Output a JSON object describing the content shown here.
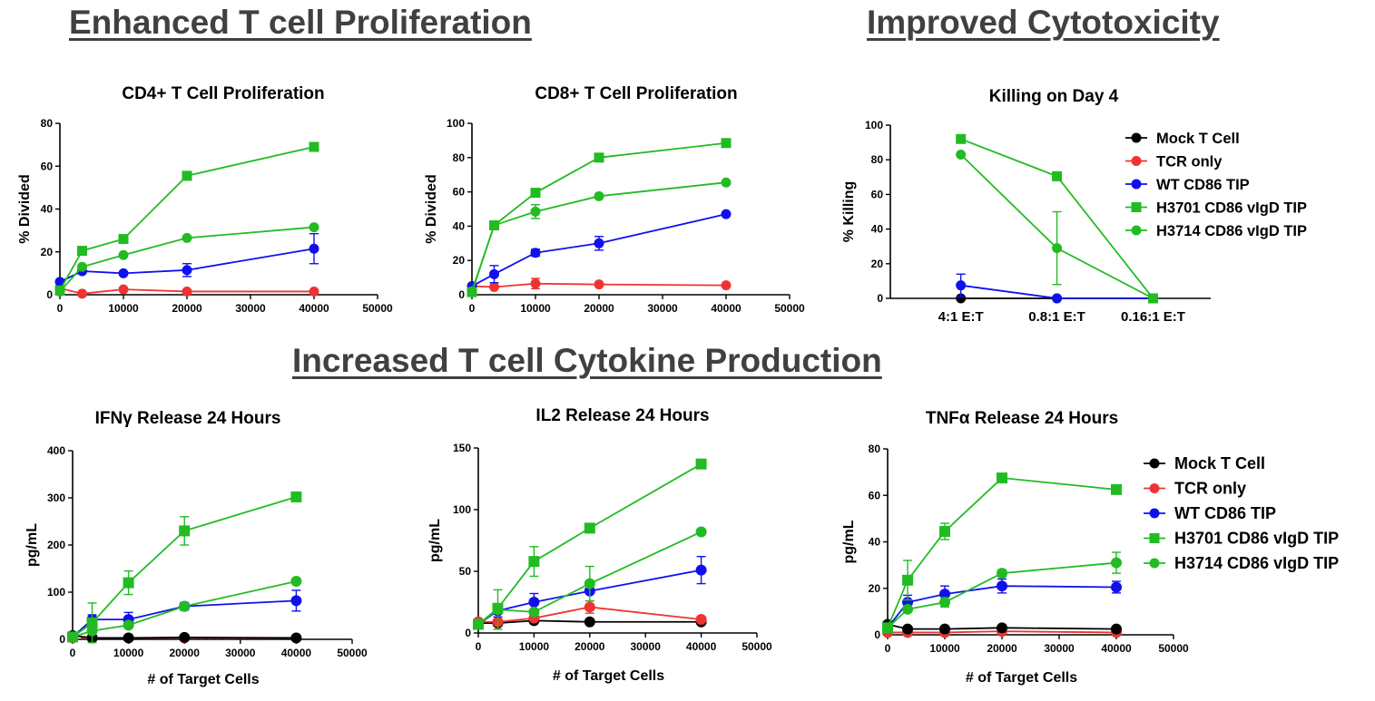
{
  "sections": {
    "proliferation": "Enhanced T cell Proliferation",
    "cytotoxicity": "Improved Cytotoxicity",
    "cytokine": "Increased T cell Cytokine Production"
  },
  "series_colors": {
    "mock": "#000000",
    "tcr": "#ee3333",
    "wt": "#1010ee",
    "h3701": "#22bb22",
    "h3714": "#22bb22"
  },
  "legend": {
    "mock": "Mock T Cell",
    "tcr": "TCR only",
    "wt": "WT CD86 TIP",
    "h3701": "H3701 CD86 vIgD TIP",
    "h3714": "H3714 CD86 vIgD TIP"
  },
  "legend_alt": {
    "mock": "Mock  T Cell",
    "tcr": "TCR only",
    "wt": "WT CD86 TIP",
    "h3701": "H3701 CD86 vIgD TIP",
    "h3714": "H3714 CD86 vIgD TIP"
  },
  "chart_data": [
    {
      "id": "cd4",
      "type": "line",
      "title": "CD4+ T Cell Proliferation",
      "xlabel": "",
      "ylabel": "% Divided",
      "xlim": [
        0,
        50000
      ],
      "ylim": [
        0,
        80
      ],
      "xticks": [
        0,
        10000,
        20000,
        30000,
        40000,
        50000
      ],
      "xtick_labels": [
        "0",
        "10000",
        "20000",
        "30000",
        "40000",
        "50000"
      ],
      "yticks": [
        0,
        20,
        40,
        60,
        80
      ],
      "ytick_labels": [
        "0",
        "20",
        "40",
        "60",
        "80"
      ],
      "x": [
        0,
        3500,
        10000,
        20000,
        40000
      ],
      "series": [
        {
          "key": "tcr",
          "marker": "circle",
          "values": [
            3,
            0.5,
            2.5,
            1.5,
            1.5
          ],
          "err": [
            0,
            0,
            0,
            0,
            0
          ]
        },
        {
          "key": "wt",
          "marker": "circle",
          "values": [
            6,
            11,
            10,
            11.5,
            21.5
          ],
          "err": [
            0,
            1,
            0,
            3,
            7
          ]
        },
        {
          "key": "h3714",
          "marker": "circle",
          "values": [
            1.5,
            13,
            18.5,
            26.5,
            31.5
          ],
          "err": [
            0,
            0,
            0,
            0,
            0
          ]
        },
        {
          "key": "h3701",
          "marker": "square",
          "values": [
            2,
            20.5,
            26,
            55.5,
            69
          ],
          "err": [
            0,
            0,
            0,
            0,
            0
          ]
        }
      ]
    },
    {
      "id": "cd8",
      "type": "line",
      "title": "CD8+ T Cell Proliferation",
      "xlabel": "",
      "ylabel": "% Divided",
      "xlim": [
        0,
        50000
      ],
      "ylim": [
        0,
        100
      ],
      "xticks": [
        0,
        10000,
        20000,
        30000,
        40000,
        50000
      ],
      "xtick_labels": [
        "0",
        "10000",
        "20000",
        "30000",
        "40000",
        "50000"
      ],
      "yticks": [
        0,
        20,
        40,
        60,
        80,
        100
      ],
      "ytick_labels": [
        "0",
        "20",
        "40",
        "60",
        "80",
        "100"
      ],
      "x": [
        0,
        3500,
        10000,
        20000,
        40000
      ],
      "series": [
        {
          "key": "tcr",
          "marker": "circle",
          "values": [
            5,
            4.5,
            6.5,
            6,
            5.5
          ],
          "err": [
            0,
            0,
            3,
            0,
            0
          ]
        },
        {
          "key": "wt",
          "marker": "circle",
          "values": [
            5,
            12,
            24.5,
            30,
            47
          ],
          "err": [
            0,
            5,
            2,
            4,
            0
          ]
        },
        {
          "key": "h3714",
          "marker": "circle",
          "values": [
            2,
            40.5,
            48.5,
            57.5,
            65.5
          ],
          "err": [
            0,
            0,
            4,
            0,
            0
          ]
        },
        {
          "key": "h3701",
          "marker": "square",
          "values": [
            1.5,
            40.5,
            59.5,
            80,
            88.5
          ],
          "err": [
            0,
            0,
            0,
            0,
            0
          ]
        }
      ]
    },
    {
      "id": "killing",
      "type": "line",
      "title": "Killing on  Day 4",
      "xlabel": "",
      "ylabel": "% Killing",
      "ylim": [
        0,
        100
      ],
      "categories": [
        "4:1 E:T",
        "0.8:1 E:T",
        "0.16:1 E:T"
      ],
      "yticks": [
        0,
        20,
        40,
        60,
        80,
        100
      ],
      "ytick_labels": [
        "0",
        "20",
        "40",
        "60",
        "80",
        "100"
      ],
      "series": [
        {
          "key": "mock",
          "marker": "circle",
          "values": [
            0,
            0,
            0
          ],
          "err": [
            0,
            0,
            0
          ]
        },
        {
          "key": "wt",
          "marker": "circle",
          "values": [
            7.5,
            0,
            0
          ],
          "err": [
            6.5,
            0,
            0
          ]
        },
        {
          "key": "h3701",
          "marker": "square",
          "values": [
            92,
            70.5,
            0
          ],
          "err": [
            0,
            0,
            0
          ]
        },
        {
          "key": "h3714",
          "marker": "circle",
          "values": [
            83,
            29,
            0
          ],
          "err": [
            0,
            21,
            0
          ]
        }
      ],
      "legend_position": "right"
    },
    {
      "id": "ifng",
      "type": "line",
      "title": "IFNγ Release 24 Hours",
      "xlabel": "# of Target Cells",
      "ylabel": "pg/mL",
      "xlim": [
        0,
        50000
      ],
      "ylim": [
        0,
        400
      ],
      "xticks": [
        0,
        10000,
        20000,
        30000,
        40000,
        50000
      ],
      "xtick_labels": [
        "0",
        "10000",
        "20000",
        "30000",
        "40000",
        "50000"
      ],
      "yticks": [
        0,
        100,
        200,
        300,
        400
      ],
      "ytick_labels": [
        "0",
        "100",
        "200",
        "300",
        "400"
      ],
      "x": [
        0,
        3500,
        10000,
        20000,
        40000
      ],
      "series": [
        {
          "key": "tcr",
          "marker": "circle",
          "values": [
            3,
            3,
            3,
            3,
            3
          ],
          "err": [
            0,
            0,
            0,
            0,
            0
          ],
          "dashed": true
        },
        {
          "key": "mock",
          "marker": "circle",
          "values": [
            8,
            3,
            3,
            4,
            3
          ],
          "err": [
            0,
            0,
            0,
            0,
            0
          ]
        },
        {
          "key": "wt",
          "marker": "circle",
          "values": [
            5,
            42,
            42,
            70,
            82
          ],
          "err": [
            0,
            10,
            15,
            8,
            22
          ]
        },
        {
          "key": "h3714",
          "marker": "circle",
          "values": [
            5,
            18,
            30,
            70,
            123
          ],
          "err": [
            0,
            0,
            0,
            0,
            0
          ]
        },
        {
          "key": "h3701",
          "marker": "square",
          "values": [
            5,
            35,
            120,
            230,
            302
          ],
          "err": [
            0,
            42,
            25,
            30,
            0
          ]
        }
      ]
    },
    {
      "id": "il2",
      "type": "line",
      "title": "IL2 Release 24 Hours",
      "xlabel": "# of Target Cells",
      "ylabel": "pg/mL",
      "xlim": [
        0,
        50000
      ],
      "ylim": [
        0,
        150
      ],
      "xticks": [
        0,
        10000,
        20000,
        30000,
        40000,
        50000
      ],
      "xtick_labels": [
        "0",
        "10000",
        "20000",
        "30000",
        "40000",
        "50000"
      ],
      "yticks": [
        0,
        50,
        100,
        150
      ],
      "ytick_labels": [
        "0",
        "50",
        "100",
        "150"
      ],
      "x": [
        0,
        3500,
        10000,
        20000,
        40000
      ],
      "series": [
        {
          "key": "mock",
          "marker": "circle",
          "values": [
            8,
            8,
            10,
            9,
            9
          ],
          "err": [
            0,
            0,
            0,
            0,
            0
          ]
        },
        {
          "key": "tcr",
          "marker": "circle",
          "values": [
            9,
            9,
            12,
            21,
            11
          ],
          "err": [
            0,
            0,
            0,
            5,
            0
          ]
        },
        {
          "key": "wt",
          "marker": "circle",
          "values": [
            7,
            18,
            25,
            34,
            51
          ],
          "err": [
            0,
            5,
            7,
            0,
            11
          ]
        },
        {
          "key": "h3714",
          "marker": "circle",
          "values": [
            7,
            19,
            17,
            40,
            82
          ],
          "err": [
            0,
            16,
            0,
            14,
            0
          ]
        },
        {
          "key": "h3701",
          "marker": "square",
          "values": [
            7,
            20,
            58,
            85,
            137
          ],
          "err": [
            0,
            0,
            12,
            0,
            0
          ]
        }
      ]
    },
    {
      "id": "tnfa",
      "type": "line",
      "title": "TNFα Release 24 Hours",
      "xlabel": "# of Target Cells",
      "ylabel": "pg/mL",
      "xlim": [
        0,
        50000
      ],
      "ylim": [
        0,
        80
      ],
      "xticks": [
        0,
        10000,
        20000,
        30000,
        40000,
        50000
      ],
      "xtick_labels": [
        "0",
        "10000",
        "20000",
        "30000",
        "40000",
        "50000"
      ],
      "yticks": [
        0,
        20,
        40,
        60,
        80
      ],
      "ytick_labels": [
        "0",
        "20",
        "40",
        "60",
        "80"
      ],
      "x": [
        0,
        3500,
        10000,
        20000,
        40000
      ],
      "series": [
        {
          "key": "tcr",
          "marker": "circle",
          "values": [
            1,
            1,
            1,
            1.5,
            1
          ],
          "err": [
            0,
            0,
            0,
            0,
            0
          ]
        },
        {
          "key": "mock",
          "marker": "circle",
          "values": [
            4.5,
            2.5,
            2.5,
            3,
            2.5
          ],
          "err": [
            0,
            0,
            0,
            0,
            0
          ]
        },
        {
          "key": "wt",
          "marker": "circle",
          "values": [
            3,
            14,
            17.5,
            21,
            20.5
          ],
          "err": [
            0,
            3,
            3.5,
            3,
            2.5
          ]
        },
        {
          "key": "h3714",
          "marker": "circle",
          "values": [
            3,
            11,
            14,
            26.5,
            31
          ],
          "err": [
            0,
            0,
            2,
            1.5,
            4.5
          ]
        },
        {
          "key": "h3701",
          "marker": "square",
          "values": [
            3,
            23.5,
            44.5,
            67.5,
            62.5
          ],
          "err": [
            0,
            8.5,
            3.5,
            0,
            0
          ]
        }
      ],
      "legend_position": "right"
    }
  ]
}
